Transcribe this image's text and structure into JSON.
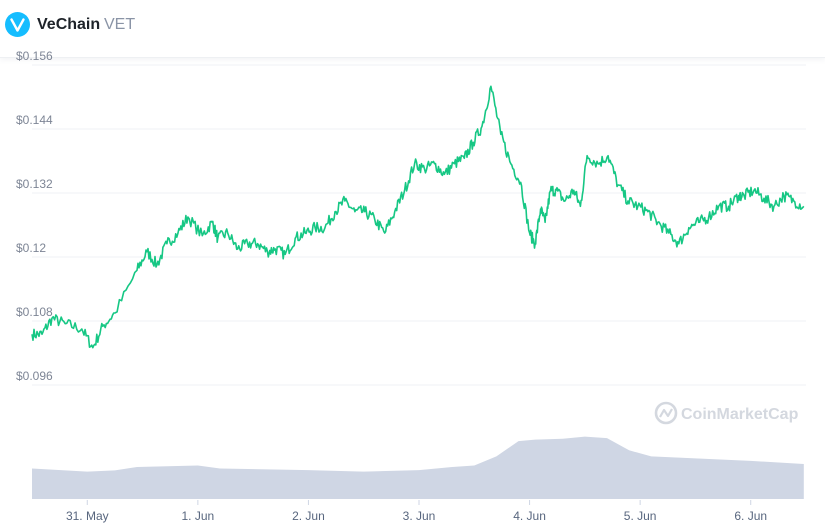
{
  "header": {
    "coin_name": "VeChain",
    "coin_symbol": "VET",
    "logo_icon": "vechain-logo-icon"
  },
  "watermark": {
    "text": "CoinMarketCap",
    "icon": "coinmarketcap-logo-icon"
  },
  "colors": {
    "line": "#16c784",
    "volume_fill": "#cfd6e4",
    "grid": "#eff2f5",
    "logo": "#15bdff"
  },
  "chart_data": {
    "type": "line",
    "title": "",
    "xlabel": "",
    "ylabel": "",
    "ylim": [
      0.09,
      0.156
    ],
    "yticks": [
      0.096,
      0.108,
      0.12,
      0.132,
      0.144,
      0.156
    ],
    "ytick_labels": [
      "$0.096",
      "$0.108",
      "$0.12",
      "$0.132",
      "$0.144",
      "$0.156"
    ],
    "xlim": [
      0.0,
      7.0
    ],
    "xtick_labels": [
      "31. May",
      "1. Jun",
      "2. Jun",
      "3. Jun",
      "4. Jun",
      "5. Jun",
      "6. Jun"
    ],
    "xtick_values": [
      0.5,
      1.5,
      2.5,
      3.5,
      4.5,
      5.5,
      6.5
    ],
    "grid": true,
    "series": [
      {
        "x": [
          0.0,
          0.09,
          0.18,
          0.3,
          0.45,
          0.55,
          0.64,
          0.75,
          0.95,
          1.04,
          1.13,
          1.22,
          1.32,
          1.41,
          1.54,
          1.63,
          1.68,
          1.77,
          1.86,
          1.95,
          2.04,
          2.13,
          2.2,
          2.29,
          2.38,
          2.47,
          2.56,
          2.65,
          2.74,
          2.83,
          2.92,
          3.01,
          3.1,
          3.19,
          3.28,
          3.37,
          3.46,
          3.55,
          3.64,
          3.73,
          3.82,
          3.91,
          3.99,
          4.07,
          4.15,
          4.24,
          4.33,
          4.42,
          4.5,
          4.55,
          4.6,
          4.64,
          4.69,
          4.74,
          4.82,
          4.9,
          4.96,
          5.02,
          5.12,
          5.21,
          5.3,
          5.39,
          5.48,
          5.57,
          5.66,
          5.76,
          5.85,
          5.94,
          6.03,
          6.12,
          6.21,
          6.3,
          6.39,
          6.44,
          6.53,
          6.62,
          6.71,
          6.8,
          6.89,
          6.98
        ],
        "values": [
          0.1055,
          0.1055,
          0.1085,
          0.1075,
          0.1065,
          0.103,
          0.107,
          0.1095,
          0.1175,
          0.121,
          0.1185,
          0.1225,
          0.1245,
          0.1275,
          0.124,
          0.1265,
          0.1235,
          0.1245,
          0.1215,
          0.1225,
          0.1225,
          0.121,
          0.1215,
          0.1205,
          0.1235,
          0.1245,
          0.1255,
          0.1255,
          0.1285,
          0.1305,
          0.1285,
          0.1285,
          0.127,
          0.1245,
          0.1285,
          0.1325,
          0.1375,
          0.1365,
          0.1375,
          0.1355,
          0.1375,
          0.1385,
          0.1415,
          0.1445,
          0.152,
          0.143,
          0.1375,
          0.134,
          0.1245,
          0.1225,
          0.129,
          0.1265,
          0.1325,
          0.1325,
          0.1305,
          0.1325,
          0.1295,
          0.139,
          0.1375,
          0.139,
          0.1335,
          0.1305,
          0.1295,
          0.1285,
          0.1265,
          0.1245,
          0.1225,
          0.1255,
          0.1265,
          0.1275,
          0.1295,
          0.1295,
          0.1315,
          0.1315,
          0.1325,
          0.131,
          0.1295,
          0.1315,
          0.1305,
          0.1295
        ]
      }
    ],
    "volume": {
      "x": [
        0.0,
        0.5,
        0.75,
        0.95,
        1.5,
        1.7,
        2.5,
        3.0,
        3.5,
        3.8,
        4.0,
        4.2,
        4.4,
        4.55,
        4.8,
        5.0,
        5.2,
        5.4,
        5.6,
        5.9,
        6.2,
        6.5,
        6.98
      ],
      "values": [
        1.0,
        0.9,
        0.94,
        1.05,
        1.1,
        1.0,
        0.95,
        0.9,
        0.95,
        1.05,
        1.1,
        1.4,
        1.9,
        1.95,
        1.98,
        2.05,
        2.0,
        1.6,
        1.4,
        1.35,
        1.3,
        1.25,
        1.15
      ]
    }
  }
}
